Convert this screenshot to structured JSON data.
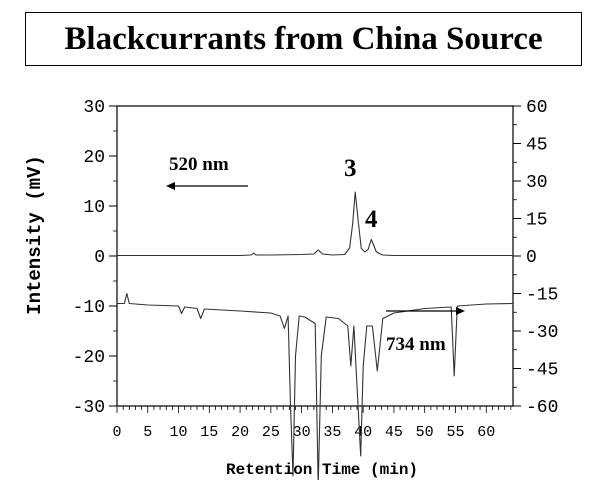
{
  "chart_data": {
    "type": "line",
    "title": "Blackcurrants from China Source",
    "xlabel": "Retention Time (min)",
    "ylabel": "Intensity (mV)",
    "xlim": [
      0,
      65
    ],
    "ylim_left": [
      -30,
      30
    ],
    "ylim_right": [
      -60,
      60
    ],
    "x_ticks": [
      "0",
      "5",
      "10",
      "15",
      "20",
      "25",
      "30",
      "35",
      "40",
      "45",
      "50",
      "55",
      "60"
    ],
    "y_left_ticks": [
      "30",
      "20",
      "10",
      "0",
      "-10",
      "-20",
      "-30"
    ],
    "y_right_ticks": [
      "60",
      "45",
      "30",
      "15",
      "0",
      "-15",
      "-30",
      "-45",
      "-60"
    ],
    "annotations": {
      "label_520": "520 nm",
      "label_734": "734 nm",
      "peak_3": "3",
      "peak_4": "4"
    },
    "series": [
      {
        "name": "520 nm",
        "x": [
          0,
          5,
          10,
          15,
          20,
          21.8,
          22.2,
          22.6,
          25,
          30,
          32,
          32.7,
          33.4,
          35,
          37,
          37.8,
          38.3,
          38.7,
          39.2,
          39.7,
          40.3,
          40.8,
          41.3,
          41.7,
          42.1,
          42.6,
          43.2,
          45,
          50,
          55,
          60,
          65
        ],
        "y": [
          0.1,
          0.1,
          0.1,
          0.1,
          0.1,
          0.2,
          0.6,
          0.2,
          0.2,
          0.3,
          0.4,
          1.2,
          0.4,
          0.2,
          0.3,
          1.6,
          6.5,
          12.8,
          7.0,
          1.5,
          0.8,
          1.3,
          3.3,
          2.2,
          0.9,
          0.5,
          0.2,
          0.1,
          0.1,
          0.1,
          0.1,
          0.1
        ]
      },
      {
        "name": "734 nm",
        "x": [
          0,
          1.2,
          1.6,
          2.0,
          5,
          10,
          10.5,
          11,
          13,
          13.6,
          14.2,
          20,
          25,
          26.5,
          27.2,
          27.8,
          28.2,
          28.6,
          29.0,
          29.6,
          30.5,
          32.2,
          32.7,
          33.2,
          34.0,
          36,
          37.5,
          38.0,
          38.5,
          39.0,
          39.6,
          40.0,
          40.6,
          41.5,
          42.3,
          43.2,
          45,
          50,
          54.3,
          54.8,
          55.3,
          60,
          65
        ],
        "y": [
          -9.5,
          -9.5,
          -7.5,
          -9.5,
          -9.8,
          -10.0,
          -11.5,
          -10.2,
          -10.5,
          -12.5,
          -10.6,
          -11.0,
          -11.4,
          -12.0,
          -14.5,
          -12.0,
          -30,
          -44,
          -20,
          -12.0,
          -12.2,
          -13.5,
          -46,
          -20,
          -12.2,
          -12.5,
          -14.0,
          -22,
          -14.0,
          -26,
          -40,
          -22,
          -14.0,
          -14.0,
          -23,
          -12.5,
          -11.4,
          -10.5,
          -10.2,
          -24,
          -10.0,
          -9.6,
          -9.5
        ]
      }
    ]
  }
}
